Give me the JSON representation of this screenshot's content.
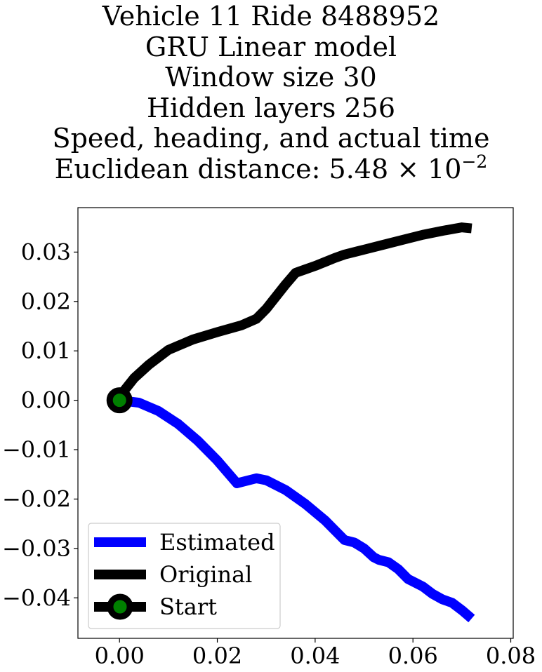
{
  "title": {
    "line1": "Vehicle 11 Ride 8488952",
    "line2": "GRU Linear model",
    "line3": "Window size 30",
    "line4": "Hidden layers 256",
    "line5": "Speed, heading, and actual time",
    "line6_prefix": "Euclidean distance: 5.48 × 10",
    "line6_exp": "−2"
  },
  "chart_data": {
    "type": "line",
    "xlim": [
      -0.0085,
      0.0805
    ],
    "ylim": [
      -0.0482,
      0.039
    ],
    "xticks": [
      0.0,
      0.02,
      0.04,
      0.06,
      0.08
    ],
    "xtick_labels": [
      "0.00",
      "0.02",
      "0.04",
      "0.06",
      "0.08"
    ],
    "yticks": [
      0.03,
      0.02,
      0.01,
      0.0,
      -0.01,
      -0.02,
      -0.03,
      -0.04
    ],
    "ytick_labels": [
      "0.03",
      "0.02",
      "0.01",
      "0.00",
      "−0.01",
      "−0.02",
      "−0.03",
      "−0.04"
    ],
    "grid": false,
    "legend_position": "lower-left",
    "series": [
      {
        "name": "Estimated",
        "color": "#0000ff",
        "x": [
          0.0,
          0.004,
          0.008,
          0.012,
          0.016,
          0.02,
          0.024,
          0.028,
          0.03,
          0.034,
          0.038,
          0.042,
          0.046,
          0.048,
          0.05,
          0.052,
          0.053,
          0.055,
          0.057,
          0.059,
          0.06,
          0.062,
          0.064,
          0.066,
          0.068,
          0.07,
          0.072
        ],
        "y": [
          0.0,
          -0.0005,
          -0.0022,
          -0.0048,
          -0.0082,
          -0.0122,
          -0.0168,
          -0.0158,
          -0.0162,
          -0.0182,
          -0.021,
          -0.0243,
          -0.0283,
          -0.0288,
          -0.03,
          -0.0318,
          -0.0323,
          -0.0328,
          -0.0342,
          -0.0362,
          -0.0367,
          -0.0377,
          -0.0392,
          -0.0403,
          -0.041,
          -0.0425,
          -0.0442
        ]
      },
      {
        "name": "Original",
        "color": "#000000",
        "x": [
          0.0,
          0.001,
          0.003,
          0.006,
          0.01,
          0.015,
          0.02,
          0.025,
          0.028,
          0.03,
          0.032,
          0.034,
          0.036,
          0.038,
          0.04,
          0.042,
          0.044,
          0.046,
          0.05,
          0.054,
          0.058,
          0.062,
          0.066,
          0.07,
          0.072
        ],
        "y": [
          0.0,
          0.002,
          0.0045,
          0.0072,
          0.0102,
          0.0123,
          0.0138,
          0.0152,
          0.0165,
          0.0185,
          0.021,
          0.0235,
          0.0258,
          0.0265,
          0.0272,
          0.028,
          0.0288,
          0.0295,
          0.0305,
          0.0315,
          0.0325,
          0.0335,
          0.0343,
          0.035,
          0.0348
        ]
      }
    ],
    "start_point": {
      "name": "Start",
      "x": 0.0,
      "y": 0.0,
      "marker_edge": "#000000",
      "marker_face": "#008000"
    }
  }
}
